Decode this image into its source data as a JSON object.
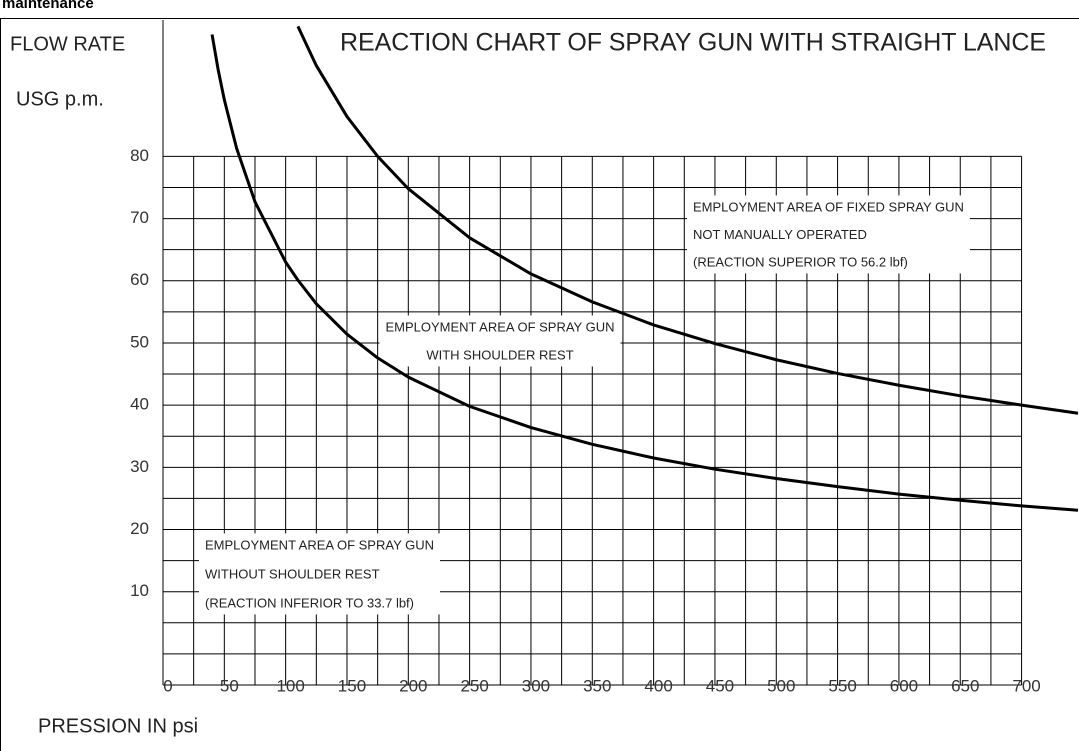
{
  "header": "maintenance",
  "chart_data": {
    "type": "line",
    "title": "REACTION CHART OF SPRAY GUN WITH STRAIGHT LANCE",
    "ylabel": [
      "FLOW RATE",
      "USG p.m."
    ],
    "xlabel": "PRESSION IN psi",
    "x": [
      40,
      45,
      50,
      60,
      75,
      100,
      110,
      125,
      150,
      175,
      200,
      250,
      300,
      350,
      400,
      450,
      500,
      550,
      600,
      650,
      700,
      746
    ],
    "series": [
      {
        "color": "#000000",
        "values": [
          99.6,
          93.9,
          89.1,
          81.3,
          72.7,
          63,
          60.1,
          56.3,
          51.4,
          47.6,
          44.5,
          39.8,
          36.4,
          33.7,
          31.5,
          29.7,
          28.2,
          26.9,
          25.7,
          24.7,
          23.8,
          23.1
        ]
      },
      {
        "color": "#000000",
        "values": [
          null,
          null,
          null,
          null,
          null,
          null,
          100.9,
          94.6,
          86.4,
          80,
          74.8,
          66.9,
          61.1,
          56.6,
          52.9,
          49.9,
          47.3,
          45.1,
          43.2,
          41.5,
          40,
          38.7
        ]
      }
    ],
    "xlim": [
      0,
      746
    ],
    "ylim": [
      -5,
      100
    ],
    "xticks": [
      0,
      50,
      100,
      150,
      200,
      250,
      300,
      350,
      400,
      450,
      500,
      550,
      600,
      650,
      700
    ],
    "yticks": [
      10,
      20,
      30,
      40,
      50,
      60,
      70,
      80
    ],
    "grid": true,
    "annotations": [
      {
        "lines": [
          "EMPLOYMENT AREA OF FIXED SPRAY GUN",
          "NOT MANUALLY OPERATED",
          "(REACTION SUPERIOR TO 56.2 lbf)"
        ]
      },
      {
        "lines": [
          "EMPLOYMENT AREA OF SPRAY GUN",
          "WITH SHOULDER REST"
        ]
      },
      {
        "lines": [
          "EMPLOYMENT AREA OF SPRAY GUN",
          "WITHOUT SHOULDER REST",
          "(REACTION INFERIOR TO 33.7 lbf)"
        ]
      }
    ]
  }
}
